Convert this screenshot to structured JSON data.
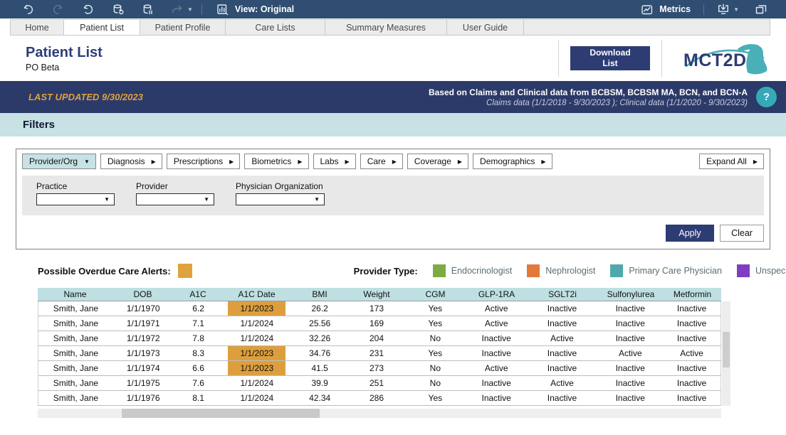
{
  "toolbar": {
    "view_label": "View: Original",
    "metrics_label": "Metrics",
    "icons": [
      "undo-icon",
      "redo-icon",
      "replay-icon",
      "refresh-data-icon",
      "pause-updates-icon",
      "share-icon",
      "view-icon",
      "metrics-icon",
      "display-download-icon",
      "fullscreen-icon"
    ]
  },
  "tabs": [
    {
      "label": "Home",
      "active": false
    },
    {
      "label": "Patient List",
      "active": true
    },
    {
      "label": "Patient Profile",
      "active": false
    },
    {
      "label": "Care Lists",
      "active": false
    },
    {
      "label": "Summary Measures",
      "active": false
    },
    {
      "label": "User Guide",
      "active": false
    }
  ],
  "header": {
    "title": "Patient List",
    "subtitle": "PO Beta",
    "download_label": "Download List",
    "logo_text": "MCT2D"
  },
  "banner": {
    "last_updated": "LAST UPDATED 9/30/2023",
    "source_line1": "Based on Claims and Clinical data from BCBSM, BCBSM MA, BCN, and BCN-A",
    "source_line2": "Claims data  (1/1/2018 - 9/30/2023 ); Clinical data (1/1/2020 - 9/30/2023)",
    "help_label": "?"
  },
  "filters": {
    "section_title": "Filters",
    "categories": [
      {
        "label": "Provider/Org",
        "expanded": true
      },
      {
        "label": "Diagnosis",
        "expanded": false
      },
      {
        "label": "Prescriptions",
        "expanded": false
      },
      {
        "label": "Biometrics",
        "expanded": false
      },
      {
        "label": "Labs",
        "expanded": false
      },
      {
        "label": "Care",
        "expanded": false
      },
      {
        "label": "Coverage",
        "expanded": false
      },
      {
        "label": "Demographics",
        "expanded": false
      }
    ],
    "expand_all_label": "Expand All",
    "dropdowns": [
      {
        "label": "Practice",
        "value": ""
      },
      {
        "label": "Provider",
        "value": ""
      },
      {
        "label": "Physician Organization",
        "value": ""
      }
    ],
    "apply_label": "Apply",
    "clear_label": "Clear"
  },
  "legend": {
    "overdue_label": "Possible Overdue Care Alerts:",
    "overdue_color": "#dfa23c",
    "provider_type_label": "Provider Type:",
    "provider_types": [
      {
        "label": "Endocrinologist",
        "color": "#7dab41"
      },
      {
        "label": "Nephrologist",
        "color": "#e2793b"
      },
      {
        "label": "Primary Care Physician",
        "color": "#4fa9ac"
      },
      {
        "label": "Unspecified",
        "color": "#7f3ec2"
      }
    ]
  },
  "table": {
    "columns": [
      "Name",
      "DOB",
      "A1C",
      "A1C Date",
      "BMI",
      "Weight",
      "CGM",
      "GLP-1RA",
      "SGLT2i",
      "Sulfonylurea",
      "Metformin"
    ],
    "alert_column": "A1C Date",
    "rows": [
      {
        "cells": [
          "Smith, Jane",
          "1/1/1970",
          "6.2",
          "1/1/2023",
          "26.2",
          "173",
          "Yes",
          "Active",
          "Inactive",
          "Inactive",
          "Inactive"
        ],
        "a1c_date_alert": true
      },
      {
        "cells": [
          "Smith, Jane",
          "1/1/1971",
          "7.1",
          "1/1/2024",
          "25.56",
          "169",
          "Yes",
          "Active",
          "Inactive",
          "Inactive",
          "Inactive"
        ],
        "a1c_date_alert": false
      },
      {
        "cells": [
          "Smith, Jane",
          "1/1/1972",
          "7.8",
          "1/1/2024",
          "32.26",
          "204",
          "No",
          "Inactive",
          "Active",
          "Inactive",
          "Inactive"
        ],
        "a1c_date_alert": false
      },
      {
        "cells": [
          "Smith, Jane",
          "1/1/1973",
          "8.3",
          "1/1/2023",
          "34.76",
          "231",
          "Yes",
          "Inactive",
          "Inactive",
          "Active",
          "Active"
        ],
        "a1c_date_alert": true
      },
      {
        "cells": [
          "Smith, Jane",
          "1/1/1974",
          "6.6",
          "1/1/2023",
          "41.5",
          "273",
          "No",
          "Active",
          "Inactive",
          "Inactive",
          "Inactive"
        ],
        "a1c_date_alert": true
      },
      {
        "cells": [
          "Smith, Jane",
          "1/1/1975",
          "7.6",
          "1/1/2024",
          "39.9",
          "251",
          "No",
          "Inactive",
          "Active",
          "Inactive",
          "Inactive"
        ],
        "a1c_date_alert": false
      },
      {
        "cells": [
          "Smith, Jane",
          "1/1/1976",
          "8.1",
          "1/1/2024",
          "42.34",
          "286",
          "Yes",
          "Inactive",
          "Inactive",
          "Inactive",
          "Inactive"
        ],
        "a1c_date_alert": false
      }
    ]
  },
  "colors": {
    "toolbar_bg": "#2f4e71",
    "banner_bg": "#2b3a68",
    "accent_navy": "#2e3c74",
    "filters_bar_bg": "#c7e1e5",
    "table_header_bg": "#bfe0e2",
    "alert_orange": "#dd9f3e",
    "last_updated_orange": "#dfa13c",
    "help_teal": "#35a9b7",
    "logo_teal": "#49b0b8"
  }
}
